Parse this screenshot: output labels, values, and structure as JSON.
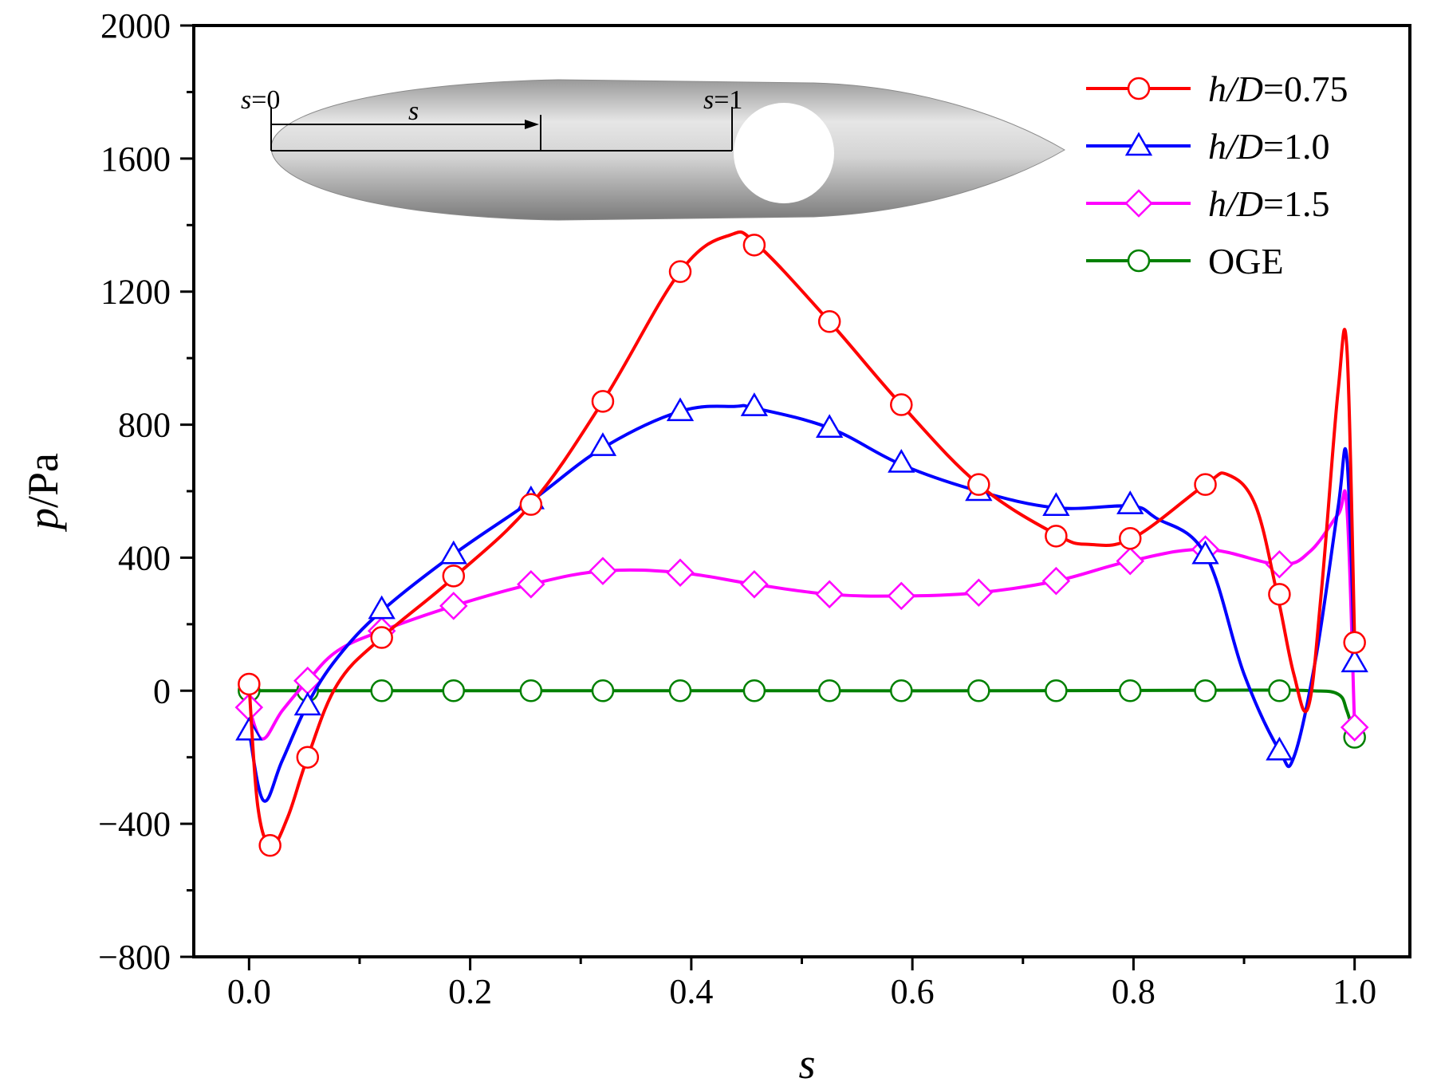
{
  "chart_data": {
    "type": "line",
    "xlabel": "s",
    "ylabel_italic": "p",
    "ylabel_unit": "/Pa",
    "xlim": [
      -0.05,
      1.05
    ],
    "ylim": [
      -800,
      2000
    ],
    "xticks": [
      0.0,
      0.2,
      0.4,
      0.6,
      0.8,
      1.0
    ],
    "xtick_labels": [
      "0.0",
      "0.2",
      "0.4",
      "0.6",
      "0.8",
      "1.0"
    ],
    "yticks": [
      -800,
      -400,
      0,
      400,
      800,
      1200,
      1600,
      2000
    ],
    "ytick_labels": [
      "−800",
      "−400",
      "0",
      "400",
      "800",
      "1200",
      "1600",
      "2000"
    ],
    "legend_position": "top-right",
    "series": [
      {
        "name": "h/D=0.75",
        "name_var": "h/D",
        "name_val": "=0.75",
        "color": "#ff0000",
        "marker": "circle",
        "curve_x": [
          0.0,
          0.008,
          0.02,
          0.035,
          0.053,
          0.08,
          0.12,
          0.185,
          0.255,
          0.32,
          0.39,
          0.435,
          0.46,
          0.525,
          0.59,
          0.66,
          0.73,
          0.76,
          0.8,
          0.865,
          0.885,
          0.91,
          0.93,
          0.945,
          0.958,
          0.97,
          0.985,
          0.993,
          1.0
        ],
        "curve_y": [
          20,
          -350,
          -465,
          -380,
          -200,
          20,
          160,
          340,
          560,
          870,
          1260,
          1370,
          1340,
          1110,
          860,
          620,
          470,
          440,
          460,
          620,
          650,
          560,
          290,
          50,
          -50,
          300,
          900,
          1030,
          150
        ],
        "marker_x": [
          0.0,
          0.019,
          0.053,
          0.12,
          0.185,
          0.255,
          0.32,
          0.39,
          0.457,
          0.525,
          0.59,
          0.66,
          0.73,
          0.797,
          0.865,
          0.932,
          1.0
        ],
        "marker_y": [
          20,
          -465,
          -200,
          160,
          345,
          560,
          870,
          1260,
          1340,
          1110,
          860,
          620,
          465,
          458,
          620,
          290,
          145
        ]
      },
      {
        "name": "h/D=1.0",
        "name_var": "h/D",
        "name_val": "=1.0",
        "color": "#0000ff",
        "marker": "triangle",
        "curve_x": [
          0.0,
          0.013,
          0.03,
          0.053,
          0.08,
          0.12,
          0.185,
          0.255,
          0.32,
          0.39,
          0.44,
          0.457,
          0.525,
          0.59,
          0.66,
          0.73,
          0.797,
          0.82,
          0.865,
          0.9,
          0.932,
          0.945,
          0.965,
          0.985,
          0.993,
          1.0
        ],
        "curve_y": [
          -120,
          -330,
          -210,
          -40,
          100,
          240,
          410,
          570,
          730,
          840,
          855,
          850,
          790,
          680,
          600,
          550,
          555,
          520,
          410,
          50,
          -180,
          -200,
          100,
          550,
          700,
          80
        ],
        "marker_x": [
          0.0,
          0.053,
          0.12,
          0.185,
          0.255,
          0.32,
          0.39,
          0.457,
          0.525,
          0.59,
          0.66,
          0.73,
          0.797,
          0.865,
          0.932,
          1.0
        ],
        "marker_y": [
          -120,
          -45,
          245,
          410,
          575,
          735,
          840,
          855,
          790,
          685,
          600,
          555,
          560,
          410,
          -180,
          85
        ]
      },
      {
        "name": "h/D=1.5",
        "name_var": "h/D",
        "name_val": "=1.5",
        "color": "#ff00ff",
        "marker": "diamond",
        "curve_x": [
          0.0,
          0.012,
          0.03,
          0.053,
          0.08,
          0.12,
          0.185,
          0.255,
          0.32,
          0.39,
          0.457,
          0.525,
          0.59,
          0.66,
          0.73,
          0.797,
          0.865,
          0.932,
          0.96,
          0.985,
          0.993,
          1.0
        ],
        "curve_y": [
          -50,
          -145,
          -60,
          30,
          120,
          180,
          255,
          320,
          360,
          355,
          320,
          290,
          285,
          295,
          330,
          390,
          425,
          380,
          420,
          530,
          550,
          -110
        ],
        "marker_x": [
          0.0,
          0.053,
          0.12,
          0.185,
          0.255,
          0.32,
          0.39,
          0.457,
          0.525,
          0.59,
          0.66,
          0.73,
          0.797,
          0.865,
          0.932,
          1.0
        ],
        "marker_y": [
          -50,
          30,
          180,
          255,
          320,
          360,
          355,
          320,
          290,
          285,
          295,
          330,
          390,
          425,
          380,
          -110
        ]
      },
      {
        "name": "OGE",
        "name_var": "",
        "name_val": "OGE",
        "color": "#008000",
        "marker": "circle",
        "curve_x": [
          0.0,
          0.1,
          0.3,
          0.5,
          0.7,
          0.9,
          0.96,
          0.985,
          0.993,
          1.0
        ],
        "curve_y": [
          0,
          0,
          0,
          0,
          0,
          2,
          0,
          -10,
          -60,
          -140
        ],
        "marker_x": [
          0.0,
          0.053,
          0.12,
          0.185,
          0.255,
          0.32,
          0.39,
          0.457,
          0.525,
          0.59,
          0.66,
          0.73,
          0.797,
          0.865,
          0.932,
          1.0
        ],
        "marker_y": [
          0,
          0,
          0,
          0,
          0,
          0,
          0,
          0,
          0,
          0,
          0,
          0,
          0,
          0,
          0,
          -140
        ]
      }
    ],
    "inset": {
      "label_s0_var": "s",
      "label_s0_val": "=0",
      "label_s_var": "s",
      "label_s1_var": "s",
      "label_s1_val": "=1"
    }
  }
}
